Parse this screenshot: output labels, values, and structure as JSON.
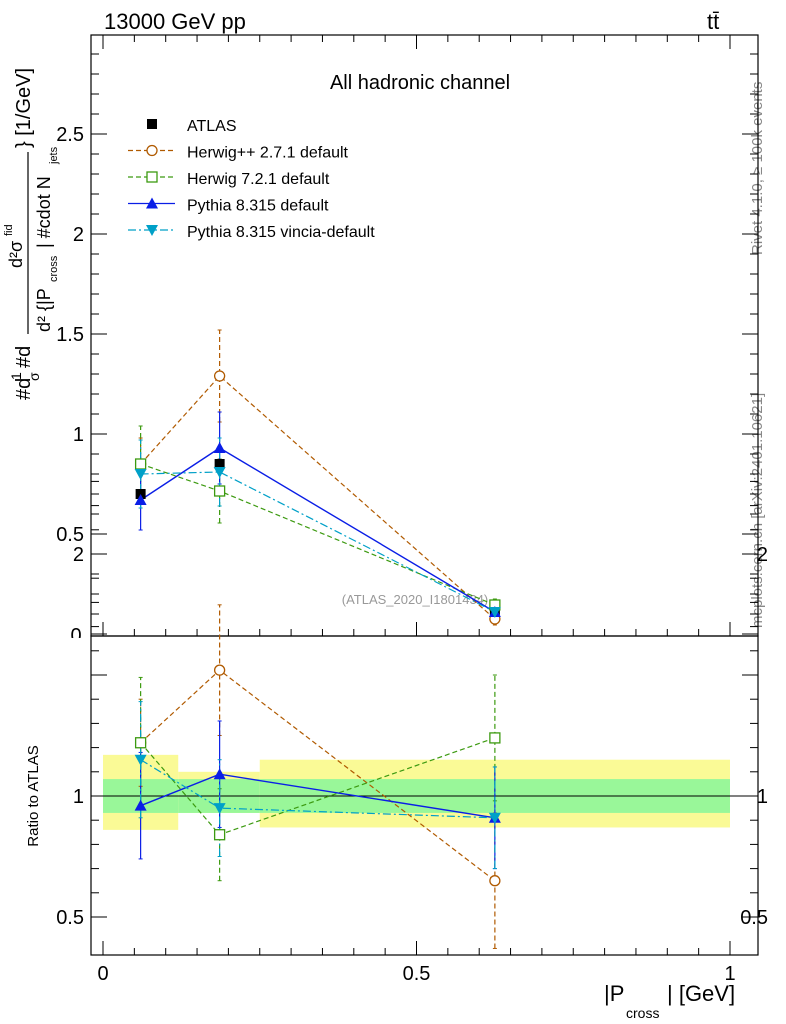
{
  "header": {
    "process": "13000 GeV pp",
    "final_state": "tt̄"
  },
  "side_labels": {
    "rivet": "Rivet 4.1.0, ≥ 100k events",
    "mcplots": "mcplots.cern.ch [arXiv:2401.10621]"
  },
  "colors": {
    "atlas": "#000000",
    "herwig_pp": "#b05a00",
    "herwig7": "#3c9a10",
    "pythia": "#0a1ee6",
    "vincia": "#00a0c8",
    "band_inner": "#99f799",
    "band_outer": "#fafa96"
  },
  "chart_data": [
    {
      "type": "scatter",
      "panel": "main",
      "title": "All hadronic channel",
      "analysis_tag": "(ATLAS_2020_I1801434)",
      "ylabel": "#d\\frac{1}{\\sigma}#d\\frac{d^{2}\\sigma^{fid}}{d^{2}{|P_{cross}| #cdot N_{jets}} [1/GeV]",
      "ylabel_display": {
        "main": "#d",
        "frac_num": "1",
        "frac_den": "σ",
        "hash_d": "#d",
        "numerator": "d²σ",
        "numerator_sup": "fid",
        "denominator": "d² {|P",
        "den_sub": "cross",
        "den_mid": "| #cdot N",
        "den_sub2": "jets",
        "unit": "} [1/GeV]"
      },
      "xlim": [
        0,
        1
      ],
      "ylim": [
        0,
        3
      ],
      "y_ticks": [
        {
          "value": 0.5,
          "label": "0.5"
        },
        {
          "value": 1,
          "label": "1"
        },
        {
          "value": 1.5,
          "label": "1.5"
        },
        {
          "value": 2,
          "label": "2"
        },
        {
          "value": 2.5,
          "label": "2.5"
        }
      ],
      "y_axis_bottom_label": "0",
      "legend_position": "top-left",
      "series": [
        {
          "key": "atlas",
          "name": "ATLAS",
          "marker": "filled-square",
          "line": "none",
          "points": [
            {
              "x": 0.06,
              "y": 0.7
            },
            {
              "x": 0.186,
              "y": 0.85
            },
            {
              "x": 0.625,
              "y": 0.12
            }
          ],
          "x_bins": [
            [
              0,
              0.12
            ],
            [
              0.12,
              0.25
            ],
            [
              0.25,
              1.0
            ]
          ]
        },
        {
          "key": "herwig_pp",
          "name": "Herwig++ 2.7.1 default",
          "marker": "open-circle",
          "line": "dashed",
          "points": [
            {
              "x": 0.06,
              "y": 0.85,
              "err": 0.13
            },
            {
              "x": 0.186,
              "y": 1.29,
              "err": 0.23
            },
            {
              "x": 0.625,
              "y": 0.075,
              "err": 0.03
            }
          ]
        },
        {
          "key": "herwig7",
          "name": "Herwig 7.2.1 default",
          "marker": "open-square",
          "line": "dashed",
          "points": [
            {
              "x": 0.06,
              "y": 0.85,
              "err": 0.19
            },
            {
              "x": 0.186,
              "y": 0.715,
              "err": 0.16
            },
            {
              "x": 0.625,
              "y": 0.145,
              "err": 0.03
            }
          ]
        },
        {
          "key": "pythia",
          "name": "Pythia 8.315 default",
          "marker": "filled-triangle-up",
          "line": "solid",
          "points": [
            {
              "x": 0.06,
              "y": 0.67,
              "err": 0.15
            },
            {
              "x": 0.186,
              "y": 0.93,
              "err": 0.18
            },
            {
              "x": 0.625,
              "y": 0.11,
              "err": 0.025
            }
          ]
        },
        {
          "key": "vincia",
          "name": "Pythia 8.315 vincia-default",
          "marker": "filled-triangle-down",
          "line": "dashdot",
          "points": [
            {
              "x": 0.06,
              "y": 0.8,
              "err": 0.17
            },
            {
              "x": 0.186,
              "y": 0.81,
              "err": 0.17
            },
            {
              "x": 0.625,
              "y": 0.11,
              "err": 0.025
            }
          ]
        }
      ]
    },
    {
      "type": "scatter",
      "panel": "ratio",
      "ylabel": "Ratio to ATLAS",
      "xlabel": "|P",
      "xlabel_sub": "cross",
      "xlabel_unit": "| [GeV]",
      "xlim": [
        0,
        1
      ],
      "ylim": [
        0.4,
        2.4
      ],
      "y_ticks": [
        {
          "value": 0.5,
          "label": "0.5"
        },
        {
          "value": 1,
          "label": "1"
        },
        {
          "value": 2,
          "label": "2"
        }
      ],
      "x_ticks": [
        {
          "value": 0,
          "label": "0"
        },
        {
          "value": 0.5,
          "label": "0.5"
        },
        {
          "value": 1,
          "label": "1"
        }
      ],
      "bands": [
        {
          "x": [
            0,
            0.12
          ],
          "inner": [
            0.93,
            1.07
          ],
          "outer": [
            0.86,
            1.17
          ]
        },
        {
          "x": [
            0.12,
            0.25
          ],
          "inner": [
            0.93,
            1.07
          ],
          "outer": [
            0.93,
            1.1
          ]
        },
        {
          "x": [
            0.25,
            1.0
          ],
          "inner": [
            0.93,
            1.07
          ],
          "outer": [
            0.87,
            1.15
          ]
        }
      ],
      "series": [
        {
          "key": "herwig_pp",
          "points": [
            {
              "x": 0.06,
              "y": 1.22,
              "err": 0.18
            },
            {
              "x": 0.186,
              "y": 1.52,
              "err": 0.27
            },
            {
              "x": 0.625,
              "y": 0.65,
              "err": 0.28
            }
          ]
        },
        {
          "key": "herwig7",
          "points": [
            {
              "x": 0.06,
              "y": 1.22,
              "err": 0.27
            },
            {
              "x": 0.186,
              "y": 0.84,
              "err": 0.19
            },
            {
              "x": 0.625,
              "y": 1.24,
              "err": 0.26
            }
          ]
        },
        {
          "key": "pythia",
          "points": [
            {
              "x": 0.06,
              "y": 0.96,
              "err": 0.22
            },
            {
              "x": 0.186,
              "y": 1.09,
              "err": 0.22
            },
            {
              "x": 0.625,
              "y": 0.91,
              "err": 0.21
            }
          ]
        },
        {
          "key": "vincia",
          "points": [
            {
              "x": 0.06,
              "y": 1.15,
              "err": 0.24
            },
            {
              "x": 0.186,
              "y": 0.95,
              "err": 0.2
            },
            {
              "x": 0.625,
              "y": 0.91,
              "err": 0.21
            }
          ]
        }
      ]
    }
  ]
}
